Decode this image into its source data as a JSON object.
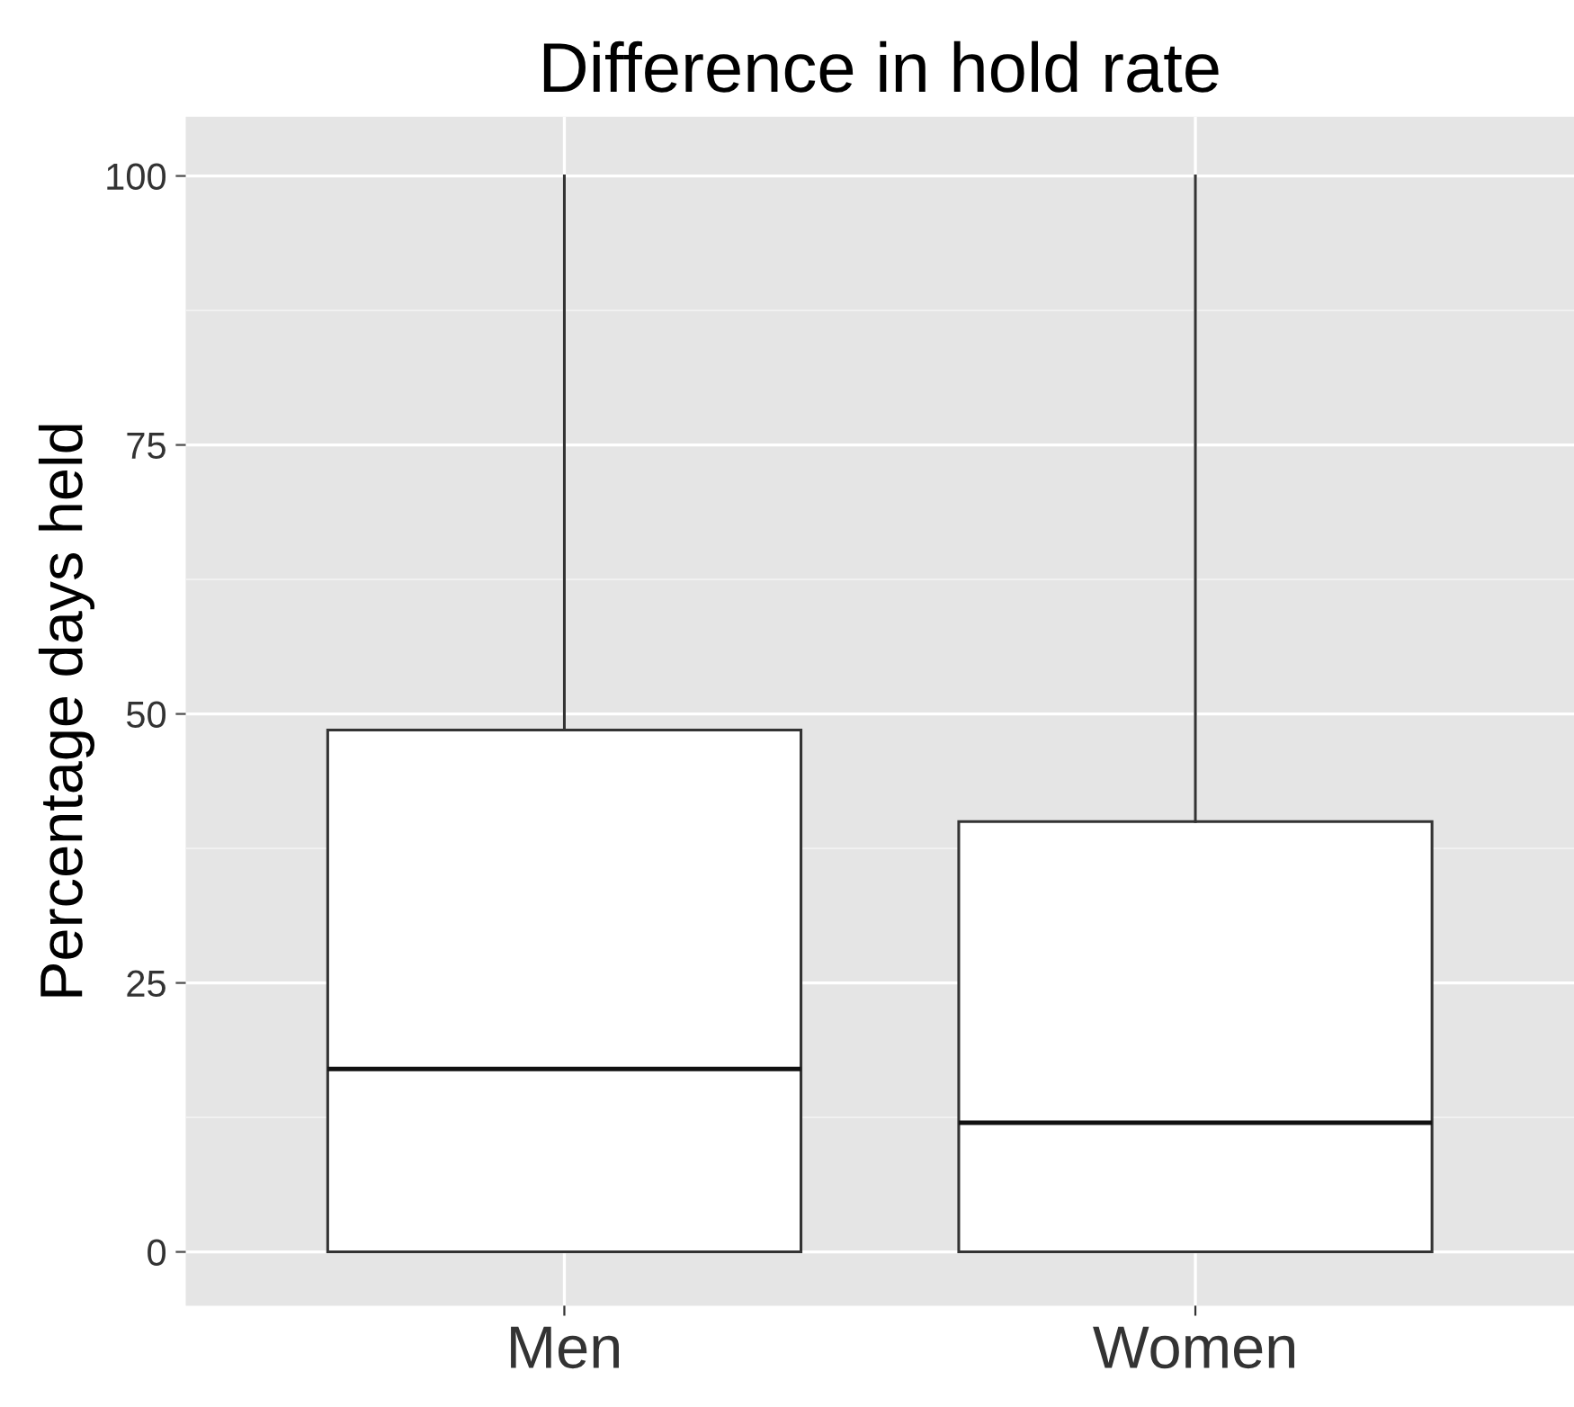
{
  "chart_data": {
    "type": "box",
    "title": "Difference in hold rate",
    "ylabel": "Percentage days held",
    "categories": [
      "Men",
      "Women"
    ],
    "boxes": [
      {
        "low": 0,
        "q1": 0,
        "median": 17,
        "q3": 48.5,
        "high": 100
      },
      {
        "low": 0,
        "q1": 0,
        "median": 12,
        "q3": 40,
        "high": 100
      }
    ],
    "ylim": [
      -5,
      105.5
    ],
    "yticks": [
      0,
      25,
      50,
      75,
      100
    ],
    "grid": true
  }
}
